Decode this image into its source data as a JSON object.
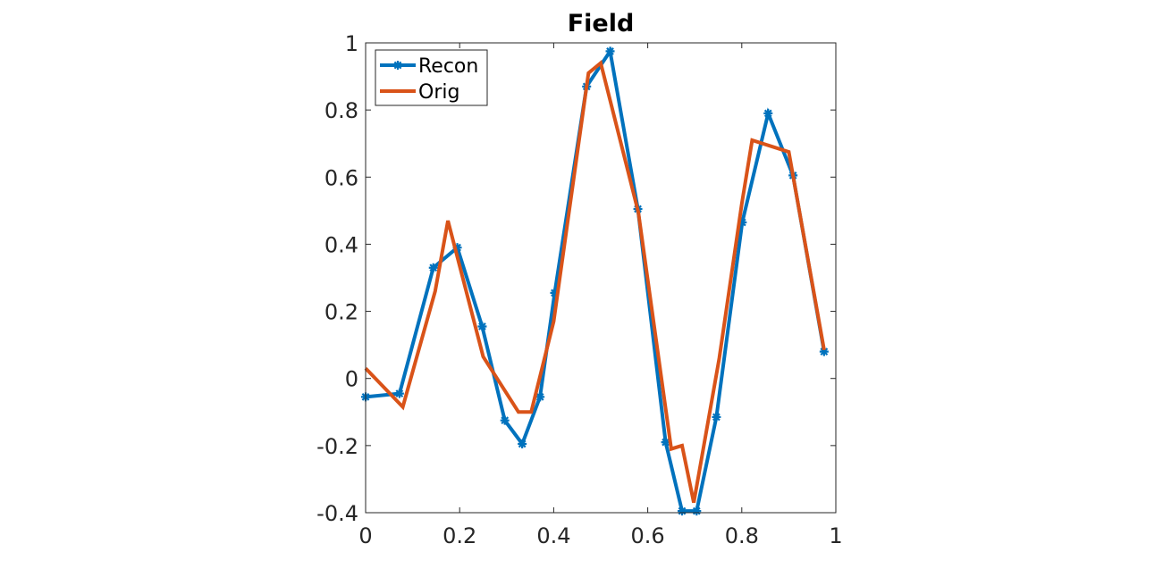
{
  "chart_data": {
    "type": "line",
    "title": "Field",
    "xlabel": "",
    "ylabel": "",
    "xlim": [
      0,
      1
    ],
    "ylim": [
      -0.4,
      1
    ],
    "x_ticks": [
      "0",
      "0.2",
      "0.4",
      "0.6",
      "0.8",
      "1"
    ],
    "y_ticks": [
      "-0.4",
      "-0.2",
      "0",
      "0.2",
      "0.4",
      "0.6",
      "0.8",
      "1"
    ],
    "grid": false,
    "legend": "top-left",
    "series": [
      {
        "name": "Recon",
        "color": "#0072BD",
        "marker": "asterisk",
        "x": [
          0.0,
          0.072,
          0.144,
          0.195,
          0.248,
          0.296,
          0.333,
          0.371,
          0.402,
          0.47,
          0.52,
          0.579,
          0.638,
          0.673,
          0.704,
          0.746,
          0.801,
          0.856,
          0.909,
          0.975
        ],
        "y": [
          -0.055,
          -0.045,
          0.33,
          0.39,
          0.155,
          -0.125,
          -0.195,
          -0.055,
          0.255,
          0.87,
          0.975,
          0.505,
          -0.19,
          -0.395,
          -0.395,
          -0.115,
          0.465,
          0.79,
          0.605,
          0.08
        ]
      },
      {
        "name": "Orig",
        "color": "#D95319",
        "x": [
          0.0,
          0.079,
          0.148,
          0.175,
          0.25,
          0.325,
          0.352,
          0.4,
          0.474,
          0.5,
          0.58,
          0.65,
          0.673,
          0.698,
          0.752,
          0.8,
          0.822,
          0.9,
          0.975
        ],
        "y": [
          0.03,
          -0.085,
          0.26,
          0.47,
          0.065,
          -0.1,
          -0.1,
          0.17,
          0.91,
          0.94,
          0.495,
          -0.21,
          -0.2,
          -0.37,
          0.06,
          0.52,
          0.71,
          0.675,
          0.085
        ]
      }
    ]
  }
}
